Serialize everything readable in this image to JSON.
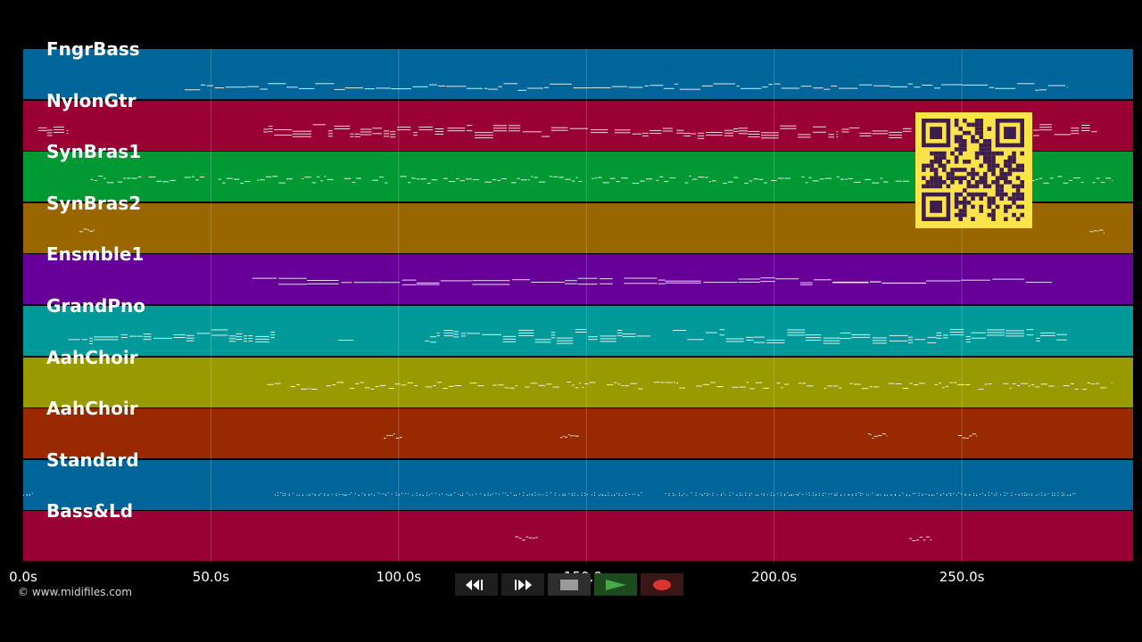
{
  "timeline": {
    "max_seconds": 295.6,
    "ticks": [
      {
        "value": 0,
        "label": "0.0s"
      },
      {
        "value": 50,
        "label": "50.0s"
      },
      {
        "value": 100,
        "label": "100.0s"
      },
      {
        "value": 150,
        "label": "150.0s"
      },
      {
        "value": 200,
        "label": "200.0s"
      },
      {
        "value": 250,
        "label": "250.0s"
      }
    ]
  },
  "tracks": [
    {
      "name": "FngrBass",
      "color": "#006699",
      "style": "bass",
      "segments": [
        [
          43,
          278
        ]
      ]
    },
    {
      "name": "NylonGtr",
      "color": "#990033",
      "style": "guitar",
      "segments": [
        [
          4,
          12
        ],
        [
          64,
          112
        ],
        [
          113,
          173
        ],
        [
          174,
          217
        ],
        [
          218,
          286
        ]
      ]
    },
    {
      "name": "SynBras1",
      "color": "#009933",
      "style": "phrase",
      "segments": [
        [
          18,
          290
        ]
      ]
    },
    {
      "name": "SynBras2",
      "color": "#996600",
      "style": "sparse",
      "segments": [
        [
          15,
          19
        ],
        [
          284,
          288
        ]
      ]
    },
    {
      "name": "Ensmble1",
      "color": "#660099",
      "style": "pad",
      "segments": [
        [
          61,
          68
        ],
        [
          68,
          157
        ],
        [
          160,
          171
        ],
        [
          171,
          274
        ]
      ]
    },
    {
      "name": "GrandPno",
      "color": "#009999",
      "style": "piano",
      "segments": [
        [
          12,
          67
        ],
        [
          84,
          88
        ],
        [
          107,
          111
        ],
        [
          112,
          167
        ],
        [
          173,
          278
        ]
      ]
    },
    {
      "name": "AahChoir",
      "color": "#999900",
      "style": "phrase",
      "segments": [
        [
          65,
          290
        ]
      ]
    },
    {
      "name": "AahChoir",
      "color": "#992900",
      "style": "sparse",
      "segments": [
        [
          96,
          101
        ],
        [
          143,
          148
        ],
        [
          225,
          230
        ],
        [
          249,
          254
        ]
      ]
    },
    {
      "name": "Standard",
      "color": "#006699",
      "style": "drums",
      "segments": [
        [
          0,
          3
        ],
        [
          67,
          165
        ],
        [
          171,
          280
        ]
      ]
    },
    {
      "name": "Bass&Ld",
      "color": "#990033",
      "style": "sparse",
      "segments": [
        [
          131,
          137
        ],
        [
          236,
          242
        ]
      ]
    }
  ],
  "credit": "© www.midifiles.com",
  "transport": {
    "rewind_icon": "rewind-icon",
    "forward_icon": "fast-forward-icon",
    "stop_icon": "stop-icon",
    "play_icon": "play-icon",
    "record_icon": "record-icon",
    "play_color": "#44aa44",
    "record_color": "#dd3333"
  },
  "qr_color": "#fde34a"
}
